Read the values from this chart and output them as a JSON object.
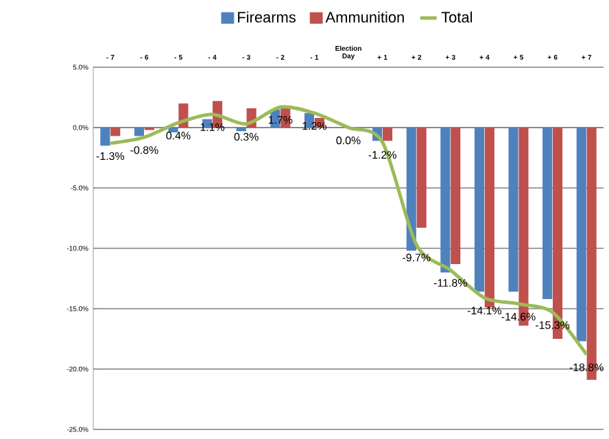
{
  "chart_data": {
    "type": "bar",
    "categories": [
      "- 7",
      "- 6",
      "- 5",
      "- 4",
      "- 3",
      "- 2",
      "- 1",
      "Election Day",
      "+ 1",
      "+ 2",
      "+ 3",
      "+ 4",
      "+ 5",
      "+ 6",
      "+ 7"
    ],
    "series": [
      {
        "name": "Firearms",
        "color": "#4f81bd",
        "values": [
          -1.5,
          -0.7,
          -0.4,
          0.7,
          -0.3,
          1.5,
          1.2,
          0.0,
          -1.1,
          -10.2,
          -12.0,
          -13.6,
          -13.6,
          -14.2,
          -17.7
        ]
      },
      {
        "name": "Ammunition",
        "color": "#c0504d",
        "values": [
          -0.7,
          -0.2,
          2.0,
          2.2,
          1.6,
          1.6,
          0.8,
          0.0,
          -1.1,
          -8.3,
          -11.3,
          -14.9,
          -16.4,
          -17.5,
          -20.9
        ]
      },
      {
        "name": "Total",
        "type": "line",
        "color": "#9bbb59",
        "marker": "none",
        "line_style": "solid",
        "values": [
          -1.3,
          -0.8,
          0.4,
          1.1,
          0.3,
          1.7,
          1.2,
          0.0,
          -1.2,
          -9.7,
          -11.8,
          -14.1,
          -14.6,
          -15.3,
          -18.8
        ],
        "value_labels": [
          "-1.3%",
          "-0.8%",
          "0.4%",
          "1.1%",
          "0.3%",
          "1.7%",
          "1.2%",
          "0.0%",
          "-1.2%",
          "-9.7%",
          "-11.8%",
          "-14.1%",
          "-14.6%",
          "-15.3%",
          "-18.8%"
        ]
      }
    ],
    "ylim": [
      -25,
      5
    ],
    "yticks": [
      {
        "value": 5,
        "label": "5.0%"
      },
      {
        "value": 0,
        "label": "0.0%"
      },
      {
        "value": -5,
        "label": "-5.0%"
      },
      {
        "value": -10,
        "label": "-10.0%"
      },
      {
        "value": -15,
        "label": "-15.0%"
      },
      {
        "value": -20,
        "label": "-20.0%"
      },
      {
        "value": -25,
        "label": "-25.0%"
      }
    ],
    "grid": "y",
    "legend": "top"
  }
}
